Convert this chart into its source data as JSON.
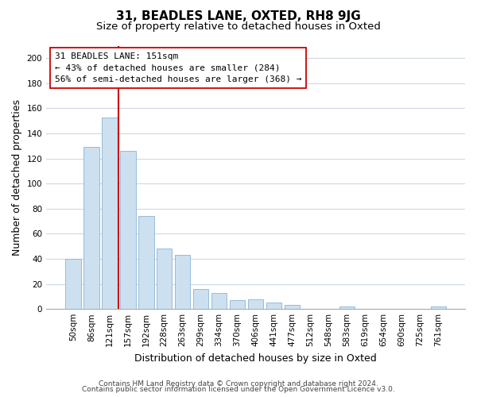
{
  "title": "31, BEADLES LANE, OXTED, RH8 9JG",
  "subtitle": "Size of property relative to detached houses in Oxted",
  "xlabel": "Distribution of detached houses by size in Oxted",
  "ylabel": "Number of detached properties",
  "bar_labels": [
    "50sqm",
    "86sqm",
    "121sqm",
    "157sqm",
    "192sqm",
    "228sqm",
    "263sqm",
    "299sqm",
    "334sqm",
    "370sqm",
    "406sqm",
    "441sqm",
    "477sqm",
    "512sqm",
    "548sqm",
    "583sqm",
    "619sqm",
    "654sqm",
    "690sqm",
    "725sqm",
    "761sqm"
  ],
  "bar_values": [
    40,
    129,
    153,
    126,
    74,
    48,
    43,
    16,
    13,
    7,
    8,
    5,
    3,
    0,
    0,
    2,
    0,
    0,
    0,
    0,
    2
  ],
  "bar_color": "#cce0f0",
  "bar_edge_color": "#8ab4d4",
  "vline_color": "#cc0000",
  "annotation_line1": "31 BEADLES LANE: 151sqm",
  "annotation_line2": "← 43% of detached houses are smaller (284)",
  "annotation_line3": "56% of semi-detached houses are larger (368) →",
  "ylim": [
    0,
    210
  ],
  "yticks": [
    0,
    20,
    40,
    60,
    80,
    100,
    120,
    140,
    160,
    180,
    200
  ],
  "footer_line1": "Contains HM Land Registry data © Crown copyright and database right 2024.",
  "footer_line2": "Contains public sector information licensed under the Open Government Licence v3.0.",
  "background_color": "#ffffff",
  "grid_color": "#d0d8e0",
  "title_fontsize": 11,
  "subtitle_fontsize": 9.5,
  "axis_label_fontsize": 9,
  "tick_fontsize": 7.5,
  "footer_fontsize": 6.5,
  "ann_fontsize": 8.0
}
